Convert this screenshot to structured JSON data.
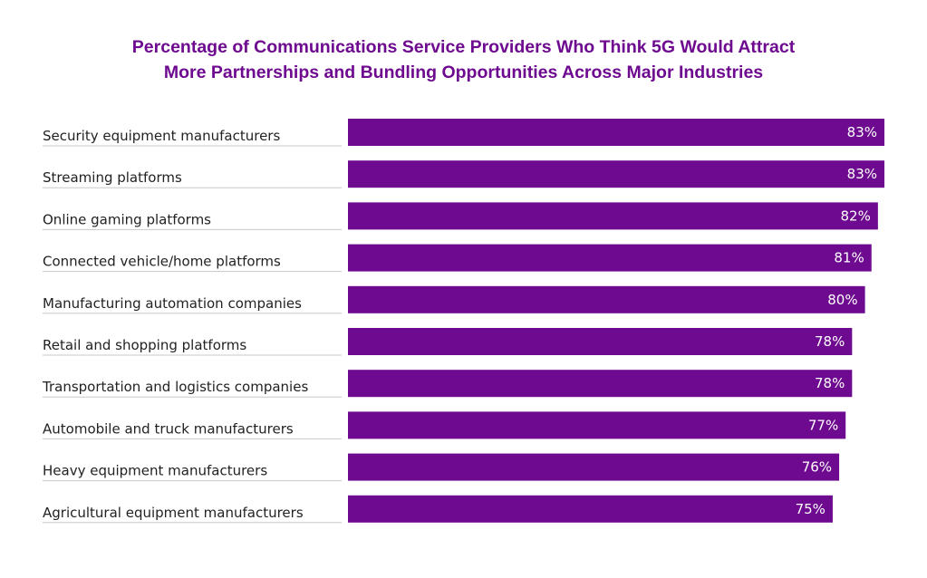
{
  "title_lines": [
    "Percentage of Communications Service Providers Who Think 5G Would Attract",
    "More Partnerships and Bundling Opportunities Across Major Industries"
  ],
  "colors": {
    "bar": "#6e0a8f",
    "title": "#6e0a8f",
    "divider": "#c8c8c8",
    "label": "#222222",
    "value_text": "#ffffff"
  },
  "chart_data": {
    "type": "bar",
    "orientation": "horizontal",
    "title": "Percentage of Communications Service Providers Who Think 5G Would Attract More Partnerships and Bundling Opportunities Across Major Industries",
    "categories": [
      "Security equipment manufacturers",
      "Streaming platforms",
      "Online gaming platforms",
      "Connected vehicle/home platforms",
      "Manufacturing automation companies",
      "Retail and shopping platforms",
      "Transportation and logistics companies",
      "Automobile and truck manufacturers",
      "Heavy equipment manufacturers",
      "Agricultural equipment manufacturers"
    ],
    "values": [
      83,
      83,
      82,
      81,
      80,
      78,
      78,
      77,
      76,
      75
    ],
    "value_labels": [
      "83%",
      "83%",
      "82%",
      "81%",
      "80%",
      "78%",
      "78%",
      "77%",
      "76%",
      "75%"
    ],
    "xlim": [
      0,
      83
    ],
    "grid": false,
    "legend": "none"
  }
}
